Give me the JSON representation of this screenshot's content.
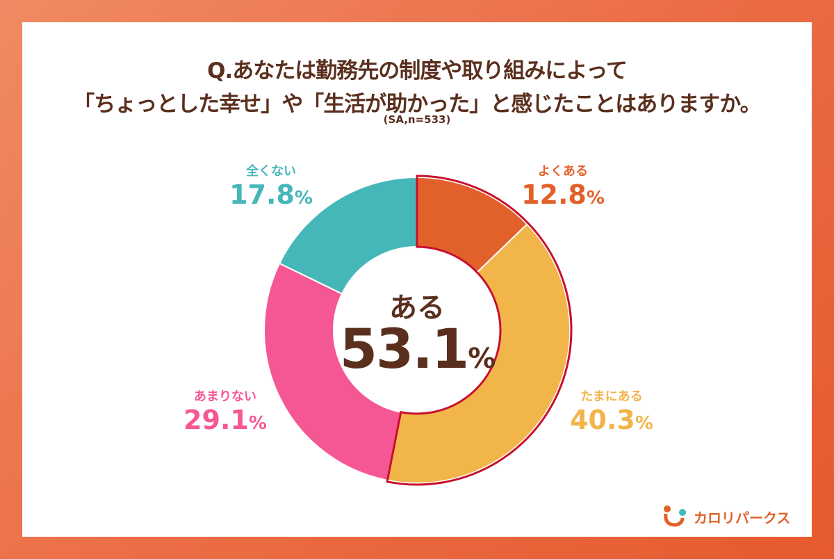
{
  "title_line1": "Q.あなたは勤務先の制度や取り組みによって",
  "title_line2": "「ちょっとした幸せ」や「生活が助かった」と感じたことはありますか。",
  "note": "(SA,n=533)",
  "chart_data": {
    "type": "pie",
    "donut": true,
    "start": "top",
    "direction": "clockwise",
    "slices": [
      {
        "label": "よくある",
        "value": 12.8,
        "display": "12.8",
        "color": "#e2612a"
      },
      {
        "label": "たまにある",
        "value": 40.3,
        "display": "40.3",
        "color": "#f2b54a"
      },
      {
        "label": "あまりない",
        "value": 29.1,
        "display": "29.1",
        "color": "#f55794"
      },
      {
        "label": "全くない",
        "value": 17.8,
        "display": "17.8",
        "color": "#46b7b9"
      }
    ],
    "highlight_color": "#c8102e",
    "center_label": "ある",
    "center_value": "53.1",
    "unit": "%"
  },
  "logo_text": "カロリパークス"
}
